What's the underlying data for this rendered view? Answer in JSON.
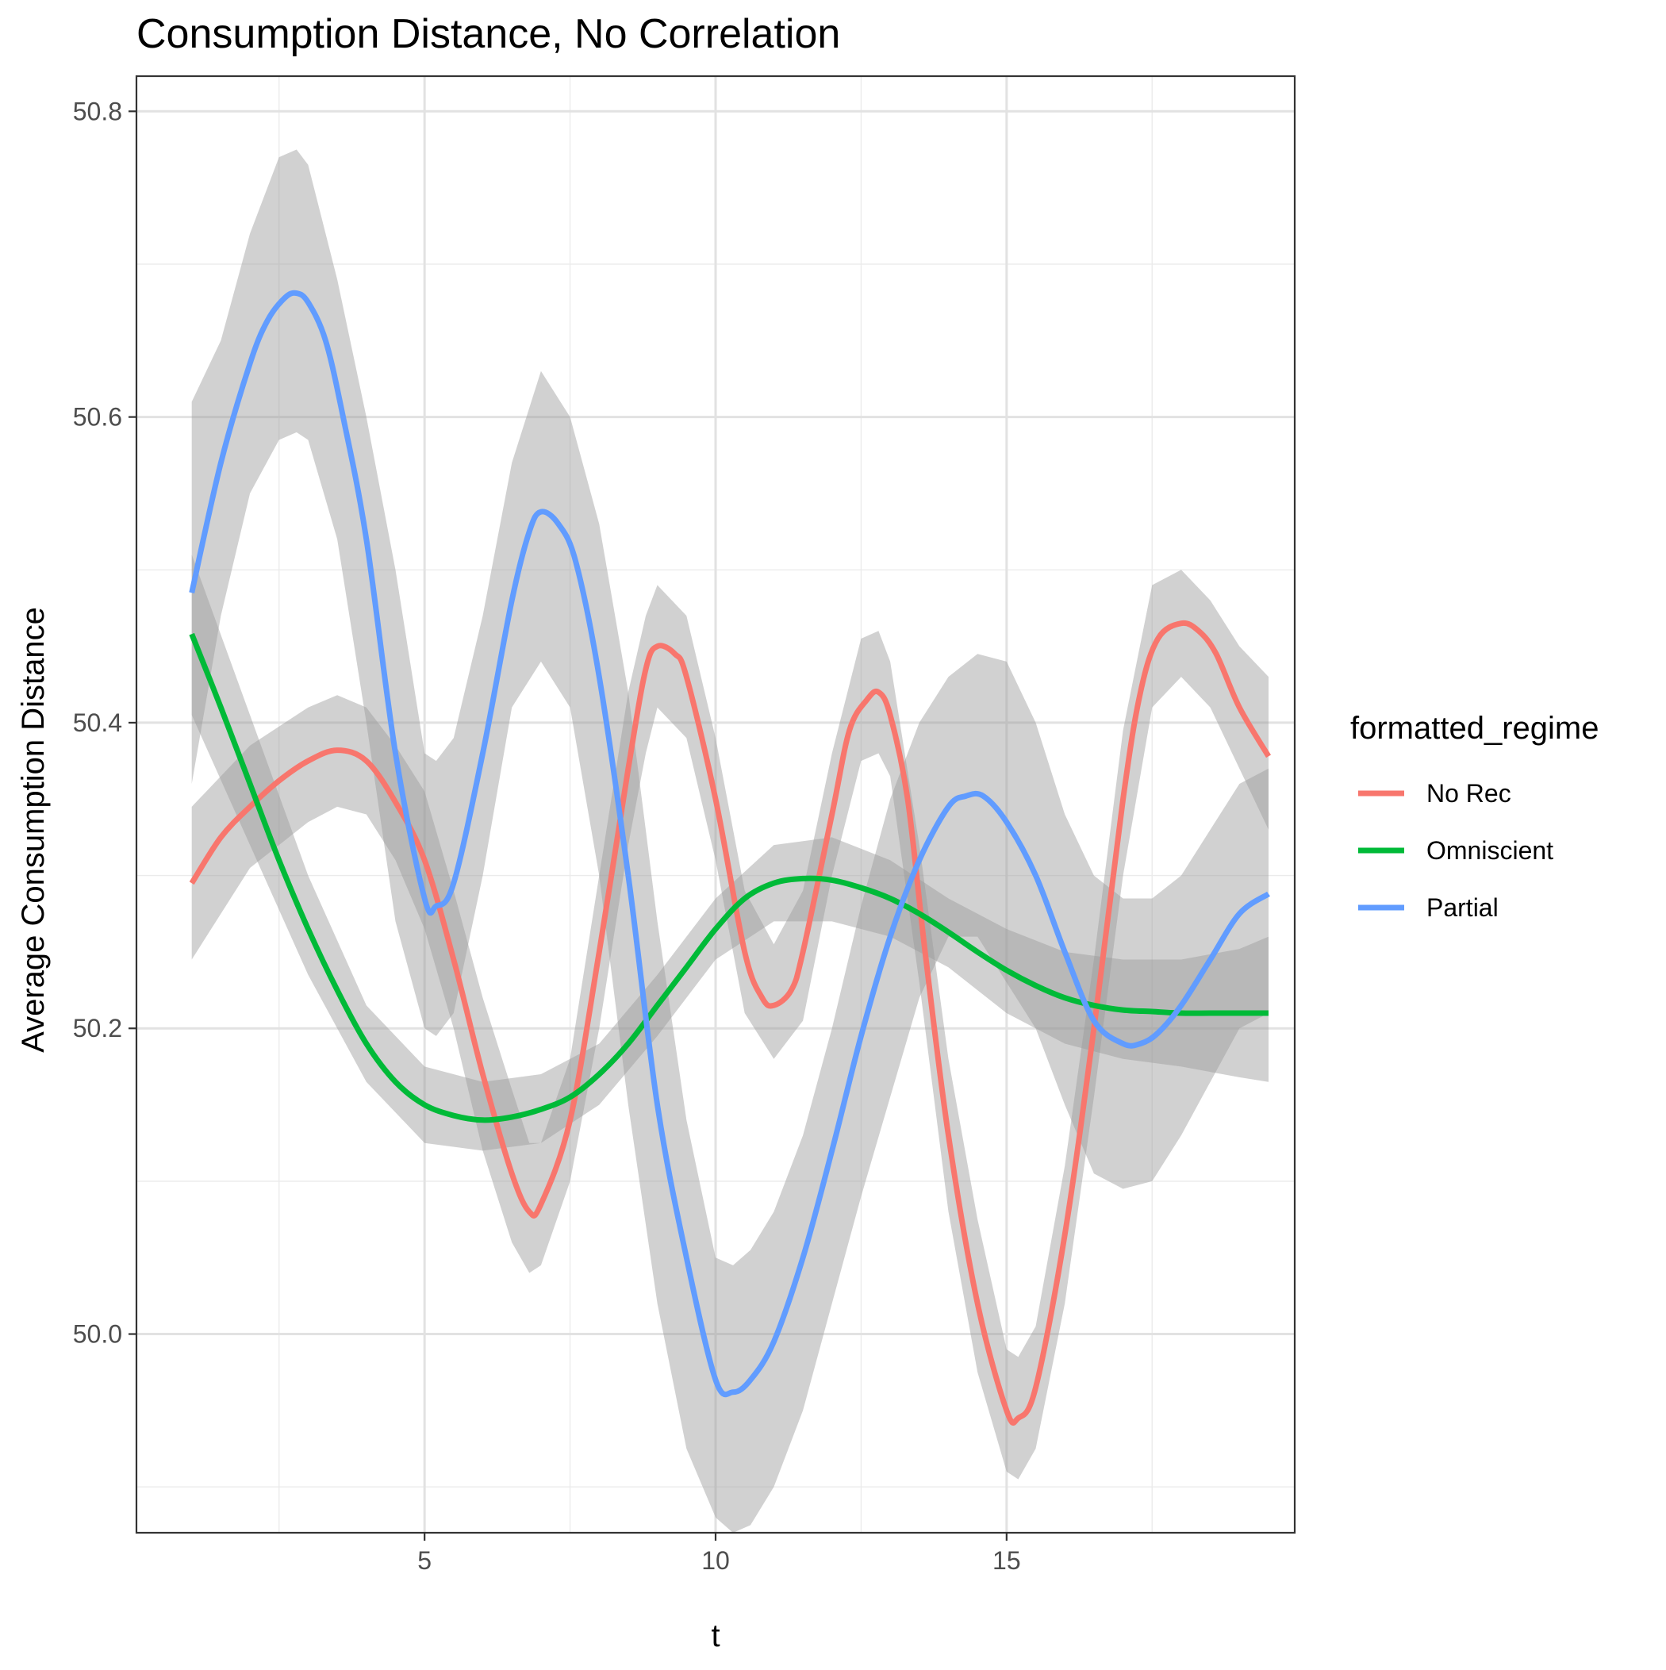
{
  "chart_data": {
    "type": "line",
    "title": "Consumption Distance, No Correlation",
    "xlabel": "t",
    "ylabel": "Average Consumption Distance",
    "xlim": [
      0.05,
      19.95
    ],
    "ylim": [
      49.87,
      50.823
    ],
    "x_ticks": [
      5,
      10,
      15
    ],
    "x_tick_labels": [
      "5",
      "10",
      "15"
    ],
    "x_minor_ticks": [
      2.5,
      7.5,
      12.5,
      17.5
    ],
    "y_ticks": [
      50.0,
      50.2,
      50.4,
      50.6,
      50.8
    ],
    "y_tick_labels": [
      "50.0",
      "50.2",
      "50.4",
      "50.6",
      "50.8"
    ],
    "y_minor_ticks": [
      49.9,
      50.1,
      50.3,
      50.5,
      50.7
    ],
    "grid": true,
    "legend": {
      "title": "formatted_regime",
      "position": "right"
    },
    "ribbon_color": "#999999",
    "series": [
      {
        "name": "No Rec",
        "color": "#F8766D",
        "points": [
          [
            1,
            50.295
          ],
          [
            1.5,
            50.325
          ],
          [
            2,
            50.345
          ],
          [
            2.5,
            50.362
          ],
          [
            3,
            50.375
          ],
          [
            3.5,
            50.382
          ],
          [
            4,
            50.375
          ],
          [
            4.5,
            50.348
          ],
          [
            5,
            50.31
          ],
          [
            5.5,
            50.245
          ],
          [
            6,
            50.17
          ],
          [
            6.5,
            50.105
          ],
          [
            6.8,
            50.08
          ],
          [
            7,
            50.085
          ],
          [
            7.5,
            50.14
          ],
          [
            8,
            50.25
          ],
          [
            8.5,
            50.37
          ],
          [
            8.8,
            50.435
          ],
          [
            9,
            50.45
          ],
          [
            9.3,
            50.445
          ],
          [
            9.5,
            50.43
          ],
          [
            10,
            50.35
          ],
          [
            10.5,
            50.25
          ],
          [
            10.8,
            50.22
          ],
          [
            11,
            50.215
          ],
          [
            11.3,
            50.225
          ],
          [
            11.5,
            50.25
          ],
          [
            12,
            50.34
          ],
          [
            12.3,
            50.395
          ],
          [
            12.6,
            50.415
          ],
          [
            12.8,
            50.42
          ],
          [
            13,
            50.405
          ],
          [
            13.3,
            50.35
          ],
          [
            13.6,
            50.25
          ],
          [
            14,
            50.13
          ],
          [
            14.5,
            50.02
          ],
          [
            15,
            49.95
          ],
          [
            15.2,
            49.945
          ],
          [
            15.5,
            49.965
          ],
          [
            16,
            50.065
          ],
          [
            16.5,
            50.2
          ],
          [
            17,
            50.35
          ],
          [
            17.3,
            50.42
          ],
          [
            17.6,
            50.455
          ],
          [
            18,
            50.465
          ],
          [
            18.3,
            50.46
          ],
          [
            18.6,
            50.445
          ],
          [
            19,
            50.41
          ],
          [
            19.5,
            50.378
          ]
        ],
        "ribbon": [
          [
            1,
            50.245,
            50.345
          ],
          [
            2,
            50.305,
            50.385
          ],
          [
            3,
            50.335,
            50.41
          ],
          [
            3.5,
            50.345,
            50.418
          ],
          [
            4,
            50.34,
            50.41
          ],
          [
            4.5,
            50.31,
            50.385
          ],
          [
            5,
            50.265,
            50.355
          ],
          [
            5.5,
            50.2,
            50.29
          ],
          [
            6,
            50.12,
            50.22
          ],
          [
            6.5,
            50.06,
            50.16
          ],
          [
            6.8,
            50.04,
            50.125
          ],
          [
            7,
            50.045,
            50.125
          ],
          [
            7.5,
            50.1,
            50.18
          ],
          [
            8,
            50.2,
            50.3
          ],
          [
            8.5,
            50.32,
            50.42
          ],
          [
            8.8,
            50.38,
            50.47
          ],
          [
            9,
            50.41,
            50.49
          ],
          [
            9.5,
            50.39,
            50.47
          ],
          [
            10,
            50.31,
            50.39
          ],
          [
            10.5,
            50.21,
            50.29
          ],
          [
            11,
            50.18,
            50.255
          ],
          [
            11.5,
            50.205,
            50.29
          ],
          [
            12,
            50.3,
            50.38
          ],
          [
            12.5,
            50.375,
            50.455
          ],
          [
            12.8,
            50.38,
            50.46
          ],
          [
            13,
            50.365,
            50.44
          ],
          [
            13.5,
            50.23,
            50.32
          ],
          [
            14,
            50.08,
            50.18
          ],
          [
            14.5,
            49.975,
            50.075
          ],
          [
            15,
            49.91,
            49.99
          ],
          [
            15.2,
            49.905,
            49.985
          ],
          [
            15.5,
            49.925,
            50.005
          ],
          [
            16,
            50.02,
            50.11
          ],
          [
            16.5,
            50.155,
            50.245
          ],
          [
            17,
            50.3,
            50.395
          ],
          [
            17.5,
            50.41,
            50.49
          ],
          [
            18,
            50.43,
            50.5
          ],
          [
            18.5,
            50.41,
            50.48
          ],
          [
            19,
            50.37,
            50.45
          ],
          [
            19.5,
            50.33,
            50.43
          ]
        ]
      },
      {
        "name": "Omniscient",
        "color": "#00BA38",
        "points": [
          [
            1,
            50.458
          ],
          [
            1.5,
            50.41
          ],
          [
            2,
            50.36
          ],
          [
            2.5,
            50.31
          ],
          [
            3,
            50.265
          ],
          [
            3.5,
            50.225
          ],
          [
            4,
            50.19
          ],
          [
            4.5,
            50.165
          ],
          [
            5,
            50.15
          ],
          [
            5.5,
            50.143
          ],
          [
            6,
            50.14
          ],
          [
            6.5,
            50.142
          ],
          [
            7,
            50.147
          ],
          [
            7.5,
            50.155
          ],
          [
            8,
            50.17
          ],
          [
            8.5,
            50.19
          ],
          [
            9,
            50.215
          ],
          [
            9.5,
            50.24
          ],
          [
            10,
            50.265
          ],
          [
            10.5,
            50.285
          ],
          [
            11,
            50.295
          ],
          [
            11.5,
            50.298
          ],
          [
            12,
            50.297
          ],
          [
            12.5,
            50.292
          ],
          [
            13,
            50.285
          ],
          [
            13.5,
            50.275
          ],
          [
            14,
            50.263
          ],
          [
            14.5,
            50.25
          ],
          [
            15,
            50.238
          ],
          [
            15.5,
            50.228
          ],
          [
            16,
            50.22
          ],
          [
            16.5,
            50.215
          ],
          [
            17,
            50.212
          ],
          [
            17.5,
            50.211
          ],
          [
            18,
            50.21
          ],
          [
            18.5,
            50.21
          ],
          [
            19,
            50.21
          ],
          [
            19.5,
            50.21
          ]
        ],
        "ribbon": [
          [
            1,
            50.405,
            50.51
          ],
          [
            2,
            50.32,
            50.405
          ],
          [
            3,
            50.235,
            50.3
          ],
          [
            4,
            50.165,
            50.215
          ],
          [
            5,
            50.125,
            50.175
          ],
          [
            6,
            50.12,
            50.165
          ],
          [
            7,
            50.125,
            50.17
          ],
          [
            8,
            50.15,
            50.19
          ],
          [
            9,
            50.195,
            50.235
          ],
          [
            10,
            50.245,
            50.285
          ],
          [
            11,
            50.27,
            50.32
          ],
          [
            12,
            50.27,
            50.325
          ],
          [
            13,
            50.26,
            50.31
          ],
          [
            14,
            50.24,
            50.285
          ],
          [
            15,
            50.21,
            50.265
          ],
          [
            16,
            50.19,
            50.25
          ],
          [
            17,
            50.18,
            50.245
          ],
          [
            18,
            50.175,
            50.245
          ],
          [
            19,
            50.168,
            50.252
          ],
          [
            19.5,
            50.165,
            50.26
          ]
        ]
      },
      {
        "name": "Partial",
        "color": "#619CFF",
        "points": [
          [
            1,
            50.485
          ],
          [
            1.5,
            50.57
          ],
          [
            2,
            50.635
          ],
          [
            2.3,
            50.663
          ],
          [
            2.6,
            50.678
          ],
          [
            2.8,
            50.681
          ],
          [
            3,
            50.675
          ],
          [
            3.3,
            50.65
          ],
          [
            3.6,
            50.6
          ],
          [
            4,
            50.52
          ],
          [
            4.5,
            50.38
          ],
          [
            5,
            50.285
          ],
          [
            5.2,
            50.28
          ],
          [
            5.5,
            50.295
          ],
          [
            6,
            50.38
          ],
          [
            6.5,
            50.48
          ],
          [
            6.8,
            50.525
          ],
          [
            7,
            50.538
          ],
          [
            7.3,
            50.53
          ],
          [
            7.6,
            50.505
          ],
          [
            8,
            50.43
          ],
          [
            8.5,
            50.3
          ],
          [
            9,
            50.15
          ],
          [
            9.5,
            50.05
          ],
          [
            10,
            49.97
          ],
          [
            10.3,
            49.962
          ],
          [
            10.6,
            49.97
          ],
          [
            11,
            49.995
          ],
          [
            11.5,
            50.05
          ],
          [
            12,
            50.12
          ],
          [
            12.5,
            50.195
          ],
          [
            13,
            50.26
          ],
          [
            13.5,
            50.31
          ],
          [
            14,
            50.345
          ],
          [
            14.3,
            50.352
          ],
          [
            14.6,
            50.352
          ],
          [
            15,
            50.335
          ],
          [
            15.5,
            50.3
          ],
          [
            16,
            50.25
          ],
          [
            16.5,
            50.205
          ],
          [
            17,
            50.19
          ],
          [
            17.3,
            50.19
          ],
          [
            17.6,
            50.197
          ],
          [
            18,
            50.215
          ],
          [
            18.5,
            50.245
          ],
          [
            19,
            50.275
          ],
          [
            19.5,
            50.288
          ]
        ],
        "ribbon": [
          [
            1,
            50.36,
            50.61
          ],
          [
            1.5,
            50.47,
            50.65
          ],
          [
            2,
            50.55,
            50.72
          ],
          [
            2.5,
            50.585,
            50.77
          ],
          [
            2.8,
            50.59,
            50.775
          ],
          [
            3,
            50.585,
            50.765
          ],
          [
            3.5,
            50.52,
            50.69
          ],
          [
            4,
            50.4,
            50.6
          ],
          [
            4.5,
            50.27,
            50.5
          ],
          [
            5,
            50.2,
            50.38
          ],
          [
            5.2,
            50.195,
            50.375
          ],
          [
            5.5,
            50.21,
            50.39
          ],
          [
            6,
            50.3,
            50.47
          ],
          [
            6.5,
            50.41,
            50.57
          ],
          [
            7,
            50.44,
            50.63
          ],
          [
            7.5,
            50.41,
            50.6
          ],
          [
            8,
            50.3,
            50.53
          ],
          [
            8.5,
            50.15,
            50.42
          ],
          [
            9,
            50.02,
            50.27
          ],
          [
            9.5,
            49.925,
            50.14
          ],
          [
            10,
            49.88,
            50.05
          ],
          [
            10.3,
            49.87,
            50.045
          ],
          [
            10.6,
            49.875,
            50.055
          ],
          [
            11,
            49.9,
            50.08
          ],
          [
            11.5,
            49.95,
            50.13
          ],
          [
            12,
            50.02,
            50.2
          ],
          [
            12.5,
            50.09,
            50.28
          ],
          [
            13,
            50.155,
            50.35
          ],
          [
            13.5,
            50.22,
            50.4
          ],
          [
            14,
            50.26,
            50.43
          ],
          [
            14.5,
            50.26,
            50.445
          ],
          [
            15,
            50.23,
            50.44
          ],
          [
            15.5,
            50.2,
            50.4
          ],
          [
            16,
            50.15,
            50.34
          ],
          [
            16.5,
            50.105,
            50.3
          ],
          [
            17,
            50.095,
            50.285
          ],
          [
            17.5,
            50.1,
            50.285
          ],
          [
            18,
            50.13,
            50.3
          ],
          [
            18.5,
            50.165,
            50.33
          ],
          [
            19,
            50.2,
            50.36
          ],
          [
            19.5,
            50.21,
            50.37
          ]
        ]
      }
    ]
  }
}
